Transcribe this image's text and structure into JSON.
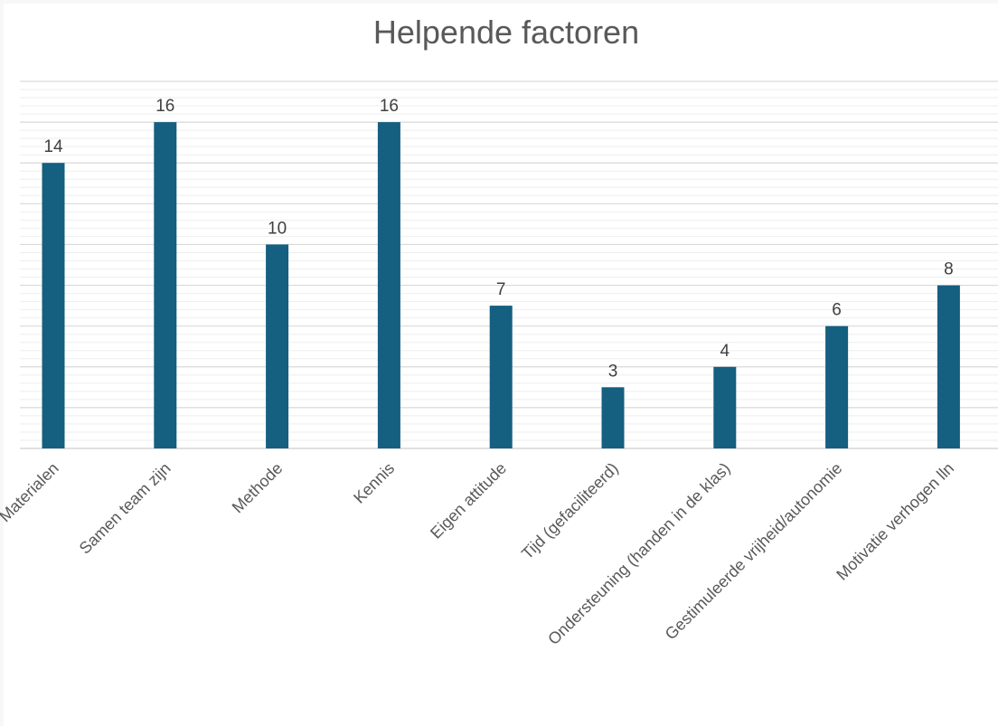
{
  "chart_data": {
    "type": "bar",
    "title": "Helpende factoren",
    "xlabel": "",
    "ylabel": "",
    "categories": [
      "Materialen",
      "Samen team zijn",
      "Methode",
      "Kennis",
      "Eigen attitude",
      "Tijd (gefaciliteerd)",
      "Ondersteuning (handen in de klas)",
      "Gestimuleerde vrijheid/autonomie",
      "Motivatie verhogen lln"
    ],
    "values": [
      14,
      16,
      10,
      16,
      7,
      3,
      4,
      6,
      8
    ],
    "ylim": [
      0,
      18
    ],
    "grid": true,
    "legend": "none",
    "colors": {
      "bar": "#155f80",
      "major_grid": "#d9d9d9",
      "minor_grid": "#eeeeee",
      "axis": "#d9d9d9"
    }
  }
}
